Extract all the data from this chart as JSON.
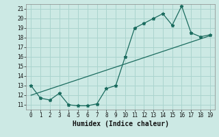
{
  "xlabel": "Humidex (Indice chaleur)",
  "ylabel": "",
  "background_color": "#cce9e4",
  "grid_color": "#aad4ce",
  "line_color": "#1a6b5e",
  "curve_x": [
    0,
    1,
    2,
    3,
    4,
    5,
    6,
    7,
    8,
    9,
    10,
    11,
    12,
    13,
    14,
    15,
    16,
    17,
    18,
    19
  ],
  "curve_y": [
    13,
    11.7,
    11.5,
    12.2,
    11.0,
    10.9,
    10.9,
    11.1,
    12.7,
    13.0,
    16.0,
    19.0,
    19.5,
    20.0,
    20.5,
    19.3,
    21.3,
    18.5,
    18.1,
    18.3
  ],
  "trend_x": [
    0,
    19
  ],
  "trend_y": [
    12.0,
    18.2
  ],
  "xlim": [
    -0.5,
    19.5
  ],
  "ylim": [
    10.5,
    21.5
  ],
  "yticks": [
    11,
    12,
    13,
    14,
    15,
    16,
    17,
    18,
    19,
    20,
    21
  ],
  "xticks": [
    0,
    1,
    2,
    3,
    4,
    5,
    6,
    7,
    8,
    9,
    10,
    11,
    12,
    13,
    14,
    15,
    16,
    17,
    18,
    19
  ]
}
